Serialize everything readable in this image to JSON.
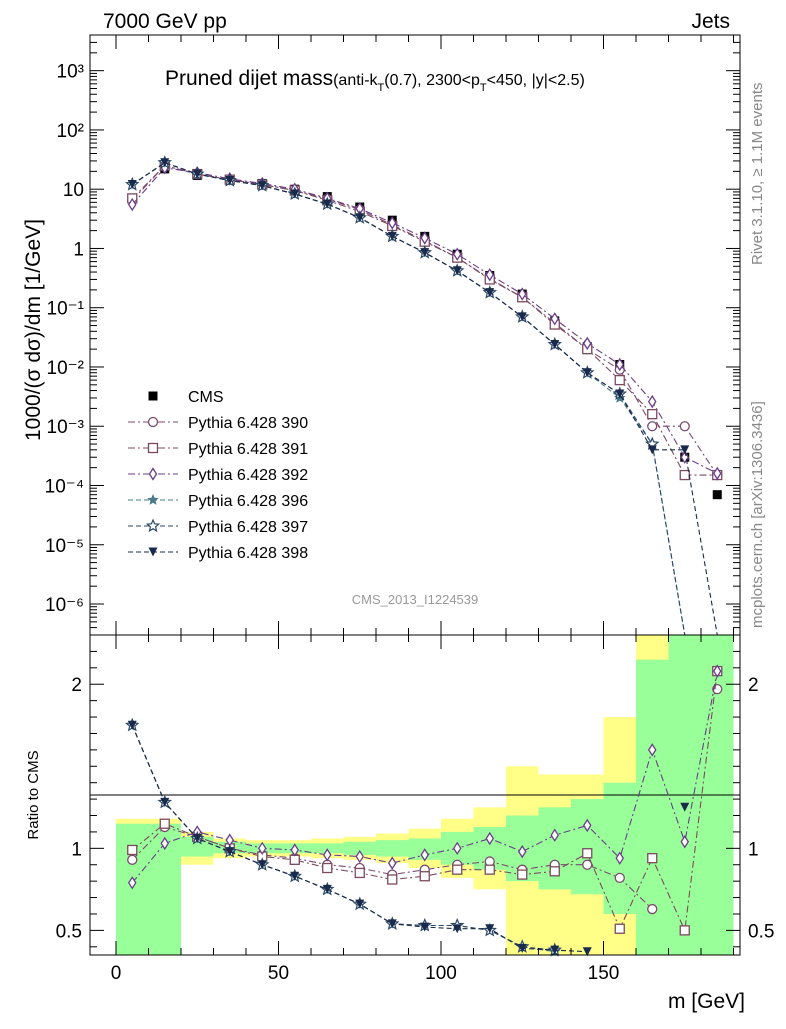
{
  "header": {
    "left": "7000 GeV pp",
    "right": "Jets"
  },
  "side_labels": {
    "rivet": "Rivet 3.1.10, ≥ 1.1M events",
    "mcplots": "mcplots.cern.ch [arXiv:1306.3436]"
  },
  "watermark": "CMS_2013_I1224539",
  "chart_data": [
    {
      "type": "scatter",
      "title_main": "Pruned dijet mass",
      "title_sub": "(anti-k",
      "title_sub_t": "T",
      "title_sub_mid": "(0.7), 2300<p",
      "title_sub_t2": "T",
      "title_sub_end": "<450, |y|<2.5)",
      "ylabel": "1000/(σ dσ)/dm [1/GeV]",
      "yscale": "log",
      "ylim": [
        3e-07,
        4000
      ],
      "xlim": [
        -8,
        192
      ],
      "ytick_labels": [
        "10⁻⁶",
        "10⁻⁵",
        "10⁻⁴",
        "10⁻³",
        "10⁻²",
        "10⁻¹",
        "1",
        "10",
        "10²",
        "10³"
      ],
      "x": [
        5,
        15,
        25,
        35,
        45,
        55,
        65,
        75,
        85,
        95,
        105,
        115,
        125,
        135,
        145,
        155,
        165,
        175,
        185
      ],
      "series": [
        {
          "name": "CMS",
          "marker": "square-filled",
          "color": "#000000",
          "values": [
            7.0,
            22,
            17,
            14.5,
            12.5,
            10,
            7.5,
            5,
            3,
            1.6,
            0.8,
            0.35,
            0.17,
            0.06,
            0.022,
            0.011,
            0.0016,
            0.0003,
            7e-05
          ]
        },
        {
          "name": "Pythia 6.428 390",
          "marker": "circle-open",
          "color": "#7b4a6e",
          "dash": "dashdot",
          "values": [
            6.5,
            25,
            18,
            14.5,
            12,
            9.5,
            6.8,
            4.5,
            2.5,
            1.35,
            0.7,
            0.31,
            0.15,
            0.055,
            0.02,
            0.009,
            0.001,
            0.001,
            0.00015
          ]
        },
        {
          "name": "Pythia 6.428 391",
          "marker": "square-open",
          "color": "#7b4a5e",
          "dash": "dashdot",
          "values": [
            7.0,
            25,
            18,
            14.5,
            12,
            9.5,
            6.5,
            4.2,
            2.4,
            1.3,
            0.7,
            0.3,
            0.15,
            0.052,
            0.02,
            0.006,
            0.0016,
            0.00015,
            0.00015
          ]
        },
        {
          "name": "Pythia 6.428 392",
          "marker": "diamond-open",
          "color": "#6a3d8a",
          "dash": "dashdot",
          "values": [
            5.5,
            23,
            19,
            15,
            12.5,
            10,
            7,
            4.7,
            2.7,
            1.5,
            0.8,
            0.36,
            0.17,
            0.065,
            0.025,
            0.011,
            0.0026,
            0.0003,
            0.00016
          ]
        },
        {
          "name": "Pythia 6.428 396",
          "marker": "star-filled",
          "color": "#4a7a8a",
          "dash": "dash",
          "values": [
            12,
            28,
            18,
            14,
            11.5,
            8.3,
            5.6,
            3.3,
            1.6,
            0.85,
            0.42,
            0.18,
            0.07,
            0.024,
            0.008,
            0.003,
            0.0005,
            0,
            0
          ]
        },
        {
          "name": "Pythia 6.428 397",
          "marker": "star-open",
          "color": "#2a4a6a",
          "dash": "dash",
          "values": [
            12,
            28,
            18,
            14,
            11.5,
            8.3,
            5.6,
            3.3,
            1.6,
            0.85,
            0.42,
            0.18,
            0.07,
            0.024,
            0.008,
            0.0035,
            0.0005,
            0,
            0
          ]
        },
        {
          "name": "Pythia 6.428 398",
          "marker": "triangle-down-filled",
          "color": "#1a2a4a",
          "dash": "dash",
          "values": [
            12,
            28,
            18,
            14,
            11.5,
            8.3,
            5.6,
            3.3,
            1.6,
            0.85,
            0.42,
            0.18,
            0.07,
            0.024,
            0.008,
            0.0035,
            0.0004,
            0.0004,
            0
          ]
        }
      ]
    },
    {
      "type": "scatter",
      "ylabel": "Ratio to CMS",
      "xlabel": "m [GeV]",
      "ylim": [
        0.35,
        2.3
      ],
      "xlim": [
        -8,
        192
      ],
      "x_ticks": [
        0,
        50,
        100,
        150
      ],
      "y_ticks": [
        0.5,
        1,
        2
      ],
      "x": [
        5,
        15,
        25,
        35,
        45,
        55,
        65,
        75,
        85,
        95,
        105,
        115,
        125,
        135,
        145,
        155,
        165,
        175,
        185
      ],
      "bin_edges": [
        0,
        10,
        20,
        30,
        40,
        50,
        60,
        70,
        80,
        90,
        100,
        110,
        120,
        130,
        140,
        150,
        160,
        170,
        180,
        190
      ],
      "band_green": [
        [
          0.35,
          1.15
        ],
        [
          0.35,
          1.15
        ],
        [
          0.95,
          1.07
        ],
        [
          0.97,
          1.04
        ],
        [
          0.97,
          1.03
        ],
        [
          0.97,
          1.03
        ],
        [
          0.97,
          1.03
        ],
        [
          0.96,
          1.04
        ],
        [
          0.95,
          1.05
        ],
        [
          0.93,
          1.06
        ],
        [
          0.9,
          1.1
        ],
        [
          0.87,
          1.13
        ],
        [
          0.8,
          1.2
        ],
        [
          0.75,
          1.25
        ],
        [
          0.72,
          1.3
        ],
        [
          0.6,
          1.4
        ],
        [
          0.35,
          2.15
        ],
        [
          0.35,
          2.3
        ],
        [
          0.35,
          2.3
        ]
      ],
      "band_yellow": [
        [
          0.35,
          1.18
        ],
        [
          0.35,
          1.18
        ],
        [
          0.9,
          1.1
        ],
        [
          0.94,
          1.06
        ],
        [
          0.95,
          1.05
        ],
        [
          0.95,
          1.05
        ],
        [
          0.94,
          1.06
        ],
        [
          0.93,
          1.07
        ],
        [
          0.91,
          1.09
        ],
        [
          0.88,
          1.12
        ],
        [
          0.82,
          1.18
        ],
        [
          0.75,
          1.25
        ],
        [
          0.35,
          1.5
        ],
        [
          0.35,
          1.45
        ],
        [
          0.35,
          1.45
        ],
        [
          0.35,
          1.8
        ],
        [
          0.35,
          2.3
        ],
        [
          0.35,
          2.3
        ],
        [
          0.35,
          2.3
        ]
      ],
      "series": [
        {
          "name": "Pythia 6.428 390",
          "values": [
            0.93,
            1.13,
            1.07,
            1.0,
            0.96,
            0.94,
            0.9,
            0.88,
            0.84,
            0.87,
            0.9,
            0.92,
            0.87,
            0.9,
            0.9,
            0.82,
            0.63,
            null,
            1.97
          ]
        },
        {
          "name": "Pythia 6.428 391",
          "values": [
            0.99,
            1.15,
            1.07,
            1.0,
            0.95,
            0.93,
            0.88,
            0.85,
            0.81,
            0.83,
            0.87,
            0.87,
            0.84,
            0.86,
            0.97,
            0.51,
            0.94,
            0.5,
            2.08
          ]
        },
        {
          "name": "Pythia 6.428 392",
          "values": [
            0.79,
            1.03,
            1.1,
            1.05,
            1.0,
            0.99,
            0.96,
            0.95,
            0.91,
            0.96,
            1.0,
            1.06,
            0.98,
            1.08,
            1.14,
            0.94,
            1.6,
            1.04,
            2.08
          ]
        },
        {
          "name": "Pythia 6.428 396",
          "values": [
            1.75,
            1.28,
            1.06,
            0.98,
            0.9,
            0.83,
            0.75,
            0.66,
            0.54,
            0.53,
            0.53,
            0.5,
            0.4,
            0.37,
            null,
            null,
            null,
            null,
            null
          ]
        },
        {
          "name": "Pythia 6.428 397",
          "values": [
            1.75,
            1.28,
            1.06,
            0.98,
            0.9,
            0.83,
            0.75,
            0.66,
            0.54,
            0.53,
            0.53,
            0.5,
            0.4,
            0.38,
            null,
            null,
            null,
            null,
            null
          ]
        },
        {
          "name": "Pythia 6.428 398",
          "values": [
            1.75,
            1.28,
            1.06,
            0.98,
            0.9,
            0.83,
            0.75,
            0.66,
            0.54,
            0.52,
            0.51,
            0.51,
            0.39,
            0.38,
            0.37,
            null,
            null,
            1.25,
            null
          ]
        }
      ]
    }
  ]
}
